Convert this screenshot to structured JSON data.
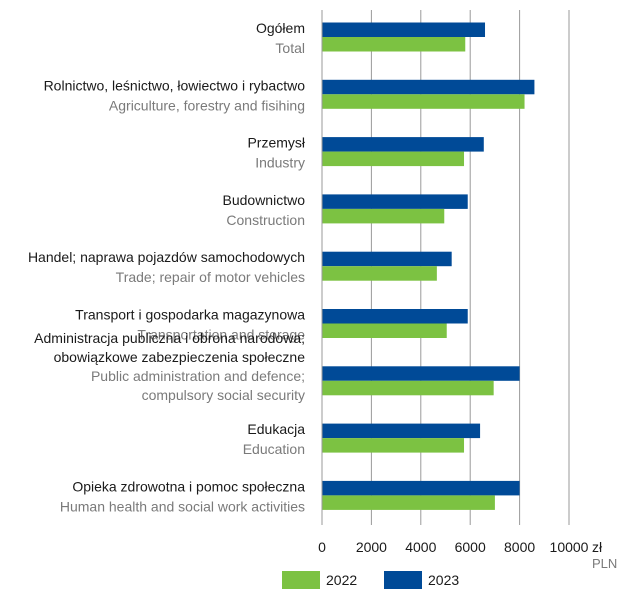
{
  "chart_data": {
    "type": "bar",
    "orientation": "horizontal",
    "categories": [
      {
        "pl": [
          "Ogółem"
        ],
        "en": [
          "Total"
        ]
      },
      {
        "pl": [
          "Rolnictwo, leśnictwo, łowiectwo i rybactwo"
        ],
        "en": [
          "Agriculture, forestry and fisihing"
        ]
      },
      {
        "pl": [
          "Przemysł"
        ],
        "en": [
          "Industry"
        ]
      },
      {
        "pl": [
          "Budownictwo"
        ],
        "en": [
          "Construction"
        ]
      },
      {
        "pl": [
          "Handel; naprawa pojazdów samochodowych"
        ],
        "en": [
          "Trade; repair of motor vehicles"
        ]
      },
      {
        "pl": [
          "Transport i gospodarka magazynowa"
        ],
        "en": [
          "Transportation and storage"
        ]
      },
      {
        "pl": [
          "Administracja publiczna i obrona narodowa;",
          "obowiązkowe zabezpieczenia społeczne"
        ],
        "en": [
          "Public administration and defence;",
          "compulsory social security"
        ]
      },
      {
        "pl": [
          "Edukacja"
        ],
        "en": [
          "Education"
        ]
      },
      {
        "pl": [
          "Opieka zdrowotna i pomoc społeczna"
        ],
        "en": [
          "Human health and social work activities"
        ]
      }
    ],
    "series": [
      {
        "name": "2023",
        "color": "#004a97",
        "values": [
          6600,
          8600,
          6550,
          5900,
          5250,
          5900,
          8000,
          6400,
          8000
        ]
      },
      {
        "name": "2022",
        "color": "#7cc242",
        "values": [
          5800,
          8200,
          5750,
          4950,
          4650,
          5050,
          6950,
          5750,
          7000
        ]
      }
    ],
    "xlim": [
      0,
      10000
    ],
    "xticks": [
      0,
      2000,
      4000,
      6000,
      8000,
      10000
    ],
    "unit_label": "zł",
    "unit_label_en": "PLN",
    "grid": true,
    "legend": {
      "placement": "bottom",
      "order": [
        "2022",
        "2023"
      ]
    }
  }
}
